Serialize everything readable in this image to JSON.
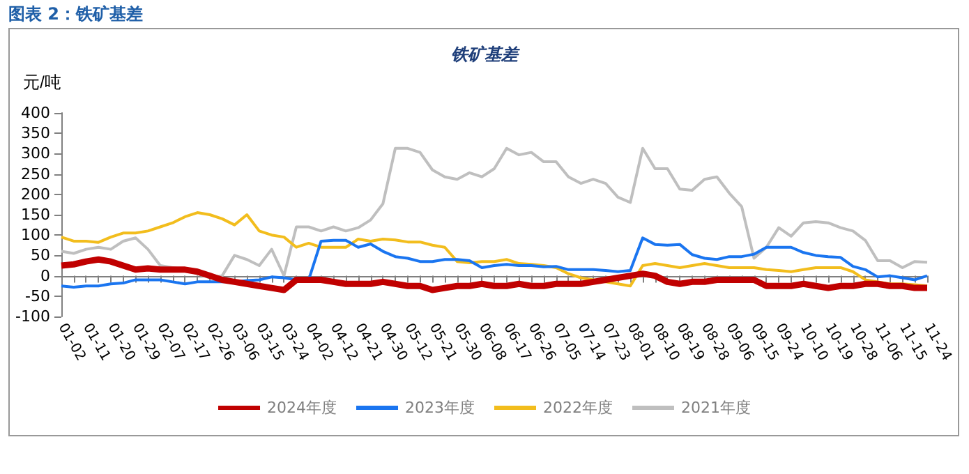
{
  "chart_data": {
    "type": "line",
    "title": "图表 2：铁矿基差",
    "subtitle": "铁矿基差",
    "ylabel": "元/吨",
    "categories": [
      "01-02",
      null,
      "01-11",
      null,
      "01-20",
      null,
      "01-29",
      null,
      "02-07",
      null,
      "02-17",
      null,
      "02-26",
      null,
      "03-06",
      null,
      "03-15",
      null,
      "03-24",
      null,
      "04-02",
      null,
      "04-12",
      null,
      "04-21",
      null,
      "04-30",
      null,
      "05-12",
      null,
      "05-21",
      null,
      "05-30",
      null,
      "06-08",
      null,
      "06-17",
      null,
      "06-26",
      null,
      "07-05",
      null,
      "07-14",
      null,
      "07-23",
      null,
      "08-01",
      null,
      "08-10",
      null,
      "08-19",
      null,
      "08-28",
      null,
      "09-06",
      null,
      "09-15",
      null,
      "09-24",
      null,
      "10-10",
      null,
      "10-19",
      null,
      "10-28",
      null,
      "11-06",
      null,
      "11-15",
      null,
      "11-24"
    ],
    "series": [
      {
        "name": "2024年度",
        "color": "#c00000",
        "values": [
          25,
          28,
          35,
          40,
          35,
          25,
          15,
          18,
          15,
          15,
          15,
          10,
          0,
          -10,
          -15,
          -20,
          -25,
          -30,
          -35,
          -10,
          -10,
          -10,
          -15,
          -20,
          -20,
          -20,
          -15,
          -20,
          -25,
          -25,
          -35,
          -30,
          -25,
          -25,
          -20,
          -25,
          -25,
          -20,
          -25,
          -25,
          -20,
          -20,
          -20,
          -15,
          -10,
          -5,
          0,
          5,
          0,
          -15,
          -20,
          -15,
          -15,
          -10,
          -10,
          -10,
          -10,
          -25,
          -25,
          -25,
          -20,
          -25,
          -30,
          -25,
          -25,
          -20,
          -20,
          -25,
          -25,
          -30,
          -30
        ]
      },
      {
        "name": "2023年度",
        "color": "#1a75f0",
        "values": [
          -25,
          -28,
          -25,
          -25,
          -20,
          -18,
          -10,
          -10,
          -10,
          -15,
          -20,
          -15,
          -15,
          -15,
          -15,
          -12,
          -10,
          -3,
          -5,
          -10,
          -10,
          85,
          87,
          87,
          70,
          78,
          60,
          47,
          43,
          35,
          35,
          40,
          40,
          37,
          20,
          25,
          28,
          25,
          25,
          22,
          23,
          15,
          15,
          15,
          13,
          10,
          13,
          93,
          77,
          75,
          77,
          52,
          43,
          40,
          47,
          47,
          53,
          70,
          70,
          70,
          57,
          50,
          47,
          45,
          23,
          15,
          -3,
          0,
          -5,
          -10,
          0
        ]
      },
      {
        "name": "2022年度",
        "color": "#f2bd1d",
        "values": [
          95,
          85,
          85,
          82,
          95,
          105,
          105,
          110,
          120,
          130,
          145,
          155,
          150,
          140,
          125,
          150,
          110,
          100,
          95,
          70,
          80,
          70,
          70,
          70,
          90,
          85,
          90,
          88,
          83,
          83,
          75,
          70,
          35,
          32,
          35,
          35,
          40,
          30,
          28,
          25,
          20,
          5,
          -5,
          -10,
          -15,
          -20,
          -25,
          25,
          30,
          25,
          20,
          25,
          30,
          25,
          20,
          20,
          20,
          15,
          13,
          10,
          15,
          20,
          20,
          20,
          10,
          -10,
          -15,
          -20,
          -20,
          -22,
          -25
        ]
      },
      {
        "name": "2021年度",
        "color": "#bfbfbf",
        "values": [
          60,
          55,
          65,
          70,
          65,
          85,
          93,
          65,
          25,
          20,
          15,
          5,
          -5,
          0,
          50,
          40,
          25,
          65,
          0,
          120,
          120,
          110,
          120,
          110,
          118,
          137,
          177,
          313,
          313,
          303,
          260,
          243,
          237,
          253,
          243,
          263,
          313,
          297,
          303,
          280,
          280,
          243,
          227,
          237,
          227,
          193,
          180,
          313,
          263,
          263,
          213,
          210,
          237,
          243,
          203,
          170,
          43,
          70,
          118,
          97,
          130,
          133,
          130,
          118,
          110,
          87,
          37,
          37,
          20,
          35,
          33
        ]
      }
    ],
    "ylim": [
      -100,
      400
    ],
    "yticks": [
      -100,
      -50,
      0,
      50,
      100,
      150,
      200,
      250,
      300,
      350,
      400
    ],
    "legend": "bottom",
    "marker": "none",
    "line_style": "solid"
  }
}
